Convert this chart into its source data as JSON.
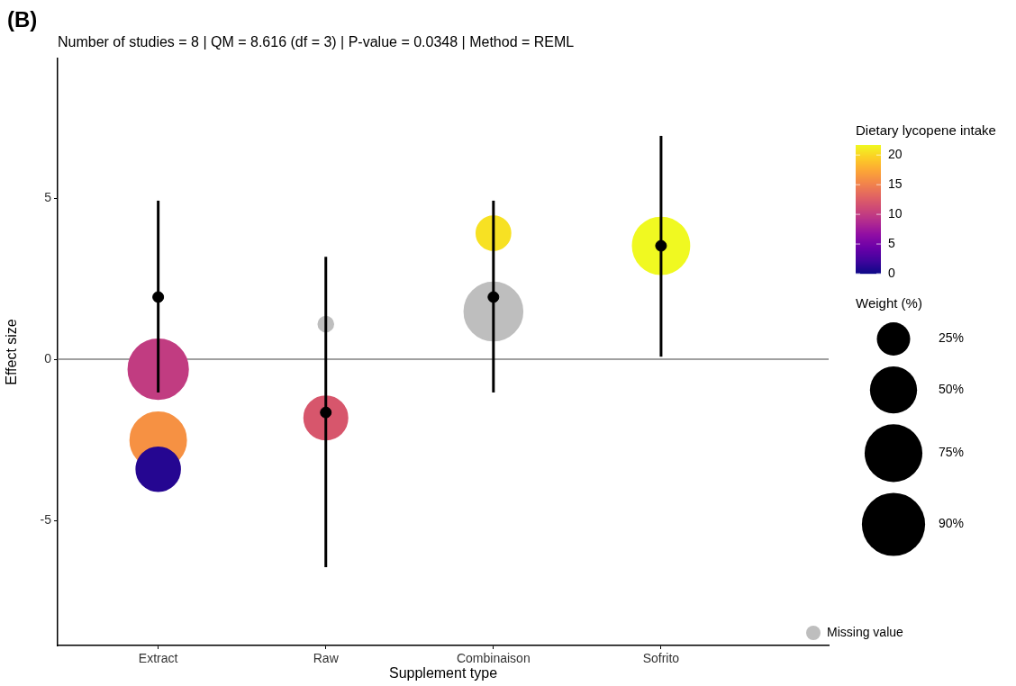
{
  "chart_data": {
    "type": "bubble",
    "title": "Number of studies = 8 | QM = 8.616 (df = 3) | P-value = 0.0348 | Method = REML",
    "annotations": [
      "(B)"
    ],
    "xlabel": "Supplement type",
    "ylabel": "Effect size",
    "clabel": "Dietary lycopene intake",
    "legend_title": "Weight (%)",
    "categories": [
      "Extract",
      "Raw",
      "Combinaison",
      "Sofrito"
    ],
    "ylim": [
      -8.88,
      9.33
    ],
    "yticks": [
      {
        "value": -5,
        "label": "-5"
      },
      0,
      5
    ],
    "clim": [
      0,
      21.7
    ],
    "cticks": [
      0,
      5,
      10,
      15,
      20
    ],
    "size_legend": [
      {
        "value": 25,
        "label": "25%"
      },
      {
        "value": 50,
        "label": "50%"
      },
      {
        "value": 75,
        "label": "75%"
      },
      {
        "value": 90,
        "label": "90%"
      }
    ],
    "ref_lines": [
      {
        "axis": "y",
        "value": 0,
        "color": "#808080"
      }
    ],
    "grid": false,
    "legend": "right",
    "series": [
      {
        "type": "bubble",
        "x": [
          "Extract",
          "Extract",
          "Extract",
          "Raw",
          "Combinaison",
          "Sofrito"
        ],
        "values": [
          -0.31,
          -2.51,
          -3.41,
          -1.82,
          3.91,
          3.52
        ],
        "sizes": [
          80,
          70,
          43,
          42,
          26,
          72
        ],
        "cvalues": [
          10,
          16,
          1,
          12,
          20.5,
          21.7
        ],
        "colors": [
          "#c13c81",
          "#f69143",
          "#250691",
          "#d7566c",
          "#f7e123",
          "#f0f921"
        ]
      },
      {
        "type": "bubble",
        "name": "Missing value",
        "color": "#bebebe",
        "x": [
          "Raw",
          "Combinaison"
        ],
        "values": [
          1.09,
          1.48
        ],
        "sizes": [
          5,
          76
        ]
      },
      {
        "type": "scatter",
        "color": "#000000",
        "marker": "circle",
        "x": [
          "Extract",
          "Raw",
          "Combinaison",
          "Sofrito"
        ],
        "values": [
          1.93,
          -1.65,
          1.93,
          3.52
        ],
        "errors": [
          [
            -1.03,
            4.92
          ],
          [
            -6.45,
            3.18
          ],
          [
            -1.03,
            4.92
          ],
          [
            0.08,
            6.93
          ]
        ]
      }
    ]
  }
}
